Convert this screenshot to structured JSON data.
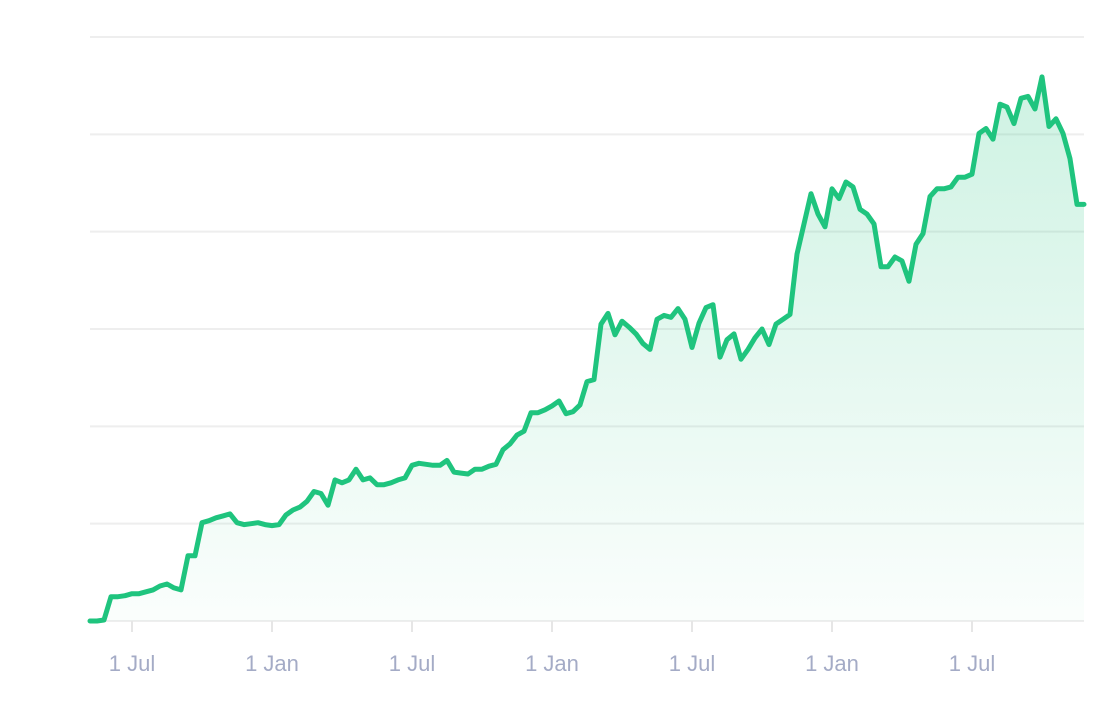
{
  "chart_data": {
    "type": "area",
    "categories": [
      null,
      null,
      null,
      null,
      null,
      null,
      "1 Jul",
      null,
      null,
      null,
      null,
      null,
      null,
      null,
      null,
      null,
      null,
      null,
      null,
      null,
      null,
      null,
      null,
      null,
      null,
      null,
      "1 Jan",
      null,
      null,
      null,
      null,
      null,
      null,
      null,
      null,
      null,
      null,
      null,
      null,
      null,
      null,
      null,
      null,
      null,
      null,
      null,
      "1 Jul",
      null,
      null,
      null,
      null,
      null,
      null,
      null,
      null,
      null,
      null,
      null,
      null,
      null,
      null,
      null,
      null,
      null,
      null,
      null,
      "1 Jan",
      null,
      null,
      null,
      null,
      null,
      null,
      null,
      null,
      null,
      null,
      null,
      null,
      null,
      null,
      null,
      null,
      null,
      null,
      null,
      "1 Jul",
      null,
      null,
      null,
      null,
      null,
      null,
      null,
      null,
      null,
      null,
      null,
      null,
      null,
      null,
      null,
      null,
      null,
      null,
      null,
      "1 Jan",
      null,
      null,
      null,
      null,
      null,
      null,
      null,
      null,
      null,
      null,
      null,
      null,
      null,
      null,
      null,
      null,
      null,
      null,
      null,
      "1 Jul",
      null,
      null,
      null,
      null,
      null,
      null,
      null,
      null,
      null,
      null,
      null,
      null,
      null,
      null,
      null,
      null
    ],
    "values": [
      0,
      0,
      1,
      25,
      25,
      26,
      28,
      28,
      30,
      32,
      36,
      38,
      34,
      32,
      67,
      67,
      101,
      103,
      106,
      108,
      110,
      101,
      99,
      100,
      101,
      99,
      98,
      99,
      109,
      114,
      117,
      123,
      133,
      131,
      119,
      145,
      142,
      145,
      156,
      145,
      147,
      140,
      140,
      142,
      145,
      147,
      160,
      162,
      161,
      160,
      160,
      165,
      153,
      152,
      151,
      156,
      156,
      159,
      161,
      176,
      182,
      191,
      195,
      214,
      214,
      217,
      221,
      226,
      213,
      215,
      222,
      246,
      248,
      305,
      316,
      294,
      308,
      302,
      295,
      285,
      279,
      310,
      314,
      312,
      321,
      310,
      281,
      306,
      322,
      325,
      271,
      289,
      295,
      269,
      279,
      291,
      300,
      284,
      305,
      310,
      315,
      377,
      408,
      439,
      418,
      405,
      444,
      434,
      451,
      446,
      423,
      418,
      408,
      364,
      364,
      374,
      370,
      349,
      387,
      398,
      436,
      444,
      444,
      446,
      456,
      456,
      459,
      501,
      506,
      495,
      531,
      528,
      511,
      537,
      539,
      526,
      559,
      508,
      516,
      501,
      475,
      428,
      428
    ],
    "color": "#1fc47e",
    "ylim": [
      0,
      600
    ],
    "yticks": [
      0,
      100,
      200,
      300,
      400,
      500,
      600
    ],
    "grid": true
  }
}
